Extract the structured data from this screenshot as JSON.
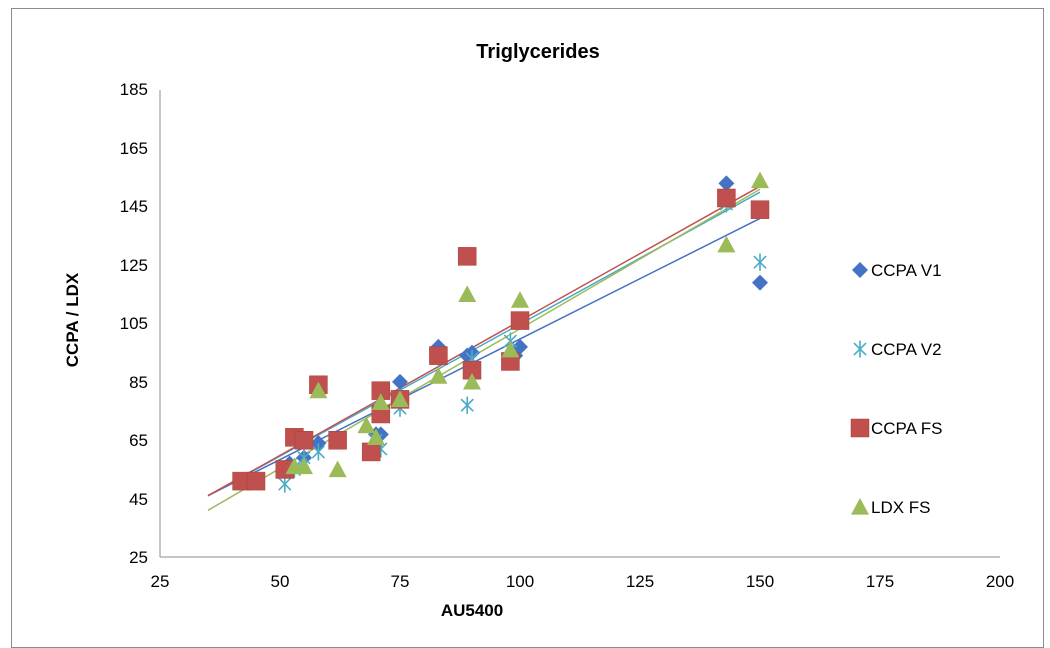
{
  "chart_data": {
    "type": "scatter",
    "title": "Triglycerides",
    "xlabel": "AU5400",
    "ylabel": "CCPA / LDX",
    "xlim": [
      25,
      200
    ],
    "ylim": [
      25,
      185
    ],
    "xticks": [
      "25",
      "50",
      "75",
      "100",
      "125",
      "150",
      "175",
      "200"
    ],
    "yticks": [
      "25",
      "45",
      "65",
      "85",
      "105",
      "125",
      "145",
      "165",
      "185"
    ],
    "grid": false,
    "legend_position": "right",
    "series": [
      {
        "name": "CCPA V1",
        "marker": "diamond",
        "color": "#4472C4",
        "points": [
          [
            44,
            52
          ],
          [
            52,
            57
          ],
          [
            55,
            59
          ],
          [
            58,
            64
          ],
          [
            70,
            67
          ],
          [
            71,
            67
          ],
          [
            75,
            85
          ],
          [
            83,
            97
          ],
          [
            89,
            94
          ],
          [
            90,
            95
          ],
          [
            99,
            94
          ],
          [
            100,
            97
          ],
          [
            143,
            153
          ],
          [
            150,
            119
          ]
        ],
        "trendline": [
          [
            35,
            46
          ],
          [
            150,
            141
          ]
        ]
      },
      {
        "name": "CCPA V2",
        "marker": "asterisk",
        "color": "#4BACC6",
        "points": [
          [
            51,
            50
          ],
          [
            53,
            55
          ],
          [
            55,
            59
          ],
          [
            58,
            61
          ],
          [
            70,
            65
          ],
          [
            71,
            62
          ],
          [
            75,
            76
          ],
          [
            83,
            93
          ],
          [
            89,
            77
          ],
          [
            90,
            93
          ],
          [
            98,
            99
          ],
          [
            143,
            146
          ],
          [
            150,
            126
          ]
        ],
        "trendline": [
          [
            35,
            46
          ],
          [
            150,
            150
          ]
        ]
      },
      {
        "name": "CCPA FS",
        "marker": "square",
        "color": "#C0504D",
        "points": [
          [
            42,
            51
          ],
          [
            45,
            51
          ],
          [
            51,
            55
          ],
          [
            53,
            66
          ],
          [
            55,
            65
          ],
          [
            58,
            84
          ],
          [
            62,
            65
          ],
          [
            69,
            61
          ],
          [
            71,
            82
          ],
          [
            71,
            74
          ],
          [
            75,
            79
          ],
          [
            83,
            94
          ],
          [
            89,
            128
          ],
          [
            90,
            89
          ],
          [
            98,
            92
          ],
          [
            100,
            106
          ],
          [
            143,
            148
          ],
          [
            150,
            144
          ]
        ],
        "trendline": [
          [
            35,
            46
          ],
          [
            150,
            152
          ]
        ]
      },
      {
        "name": "LDX FS",
        "marker": "triangle",
        "color": "#9BBB59",
        "points": [
          [
            53,
            56
          ],
          [
            55,
            56
          ],
          [
            58,
            82
          ],
          [
            62,
            55
          ],
          [
            68,
            70
          ],
          [
            70,
            66
          ],
          [
            71,
            78
          ],
          [
            75,
            79
          ],
          [
            83,
            87
          ],
          [
            89,
            115
          ],
          [
            90,
            85
          ],
          [
            98,
            96
          ],
          [
            100,
            113
          ],
          [
            143,
            132
          ],
          [
            150,
            154
          ]
        ],
        "trendline": [
          [
            35,
            41
          ],
          [
            150,
            151
          ]
        ]
      }
    ]
  }
}
